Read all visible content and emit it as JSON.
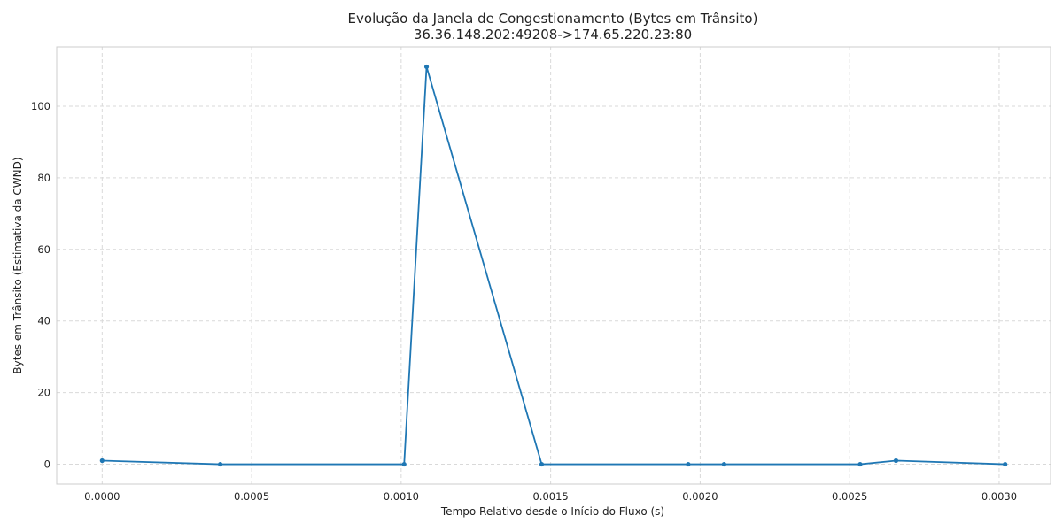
{
  "chart_data": {
    "type": "line",
    "title": "Evolução da Janela de Congestionamento (Bytes em Trânsito)",
    "subtitle": "36.36.148.202:49208->174.65.220.23:80",
    "xlabel": "Tempo Relativo desde o Início do Fluxo (s)",
    "ylabel": "Bytes em Trânsito (Estimativa da CWND)",
    "xlim": [
      -0.000152,
      0.003172
    ],
    "ylim": [
      -5.55,
      116.55
    ],
    "xticks": [
      0.0,
      0.0005,
      0.001,
      0.0015,
      0.002,
      0.0025,
      0.003
    ],
    "xtick_labels": [
      "0.0000",
      "0.0005",
      "0.0010",
      "0.0015",
      "0.0020",
      "0.0025",
      "0.0030"
    ],
    "yticks": [
      0,
      20,
      40,
      60,
      80,
      100
    ],
    "ytick_labels": [
      "0",
      "20",
      "40",
      "60",
      "80",
      "100"
    ],
    "grid": true,
    "series": [
      {
        "color": "#1f77b4",
        "x": [
          0.0,
          0.000395,
          0.00101,
          0.001085,
          0.00147,
          0.00196,
          0.00208,
          0.002535,
          0.002655,
          0.00302
        ],
        "y": [
          1,
          0,
          0,
          111,
          0,
          0,
          0,
          0,
          1,
          0
        ]
      }
    ]
  }
}
